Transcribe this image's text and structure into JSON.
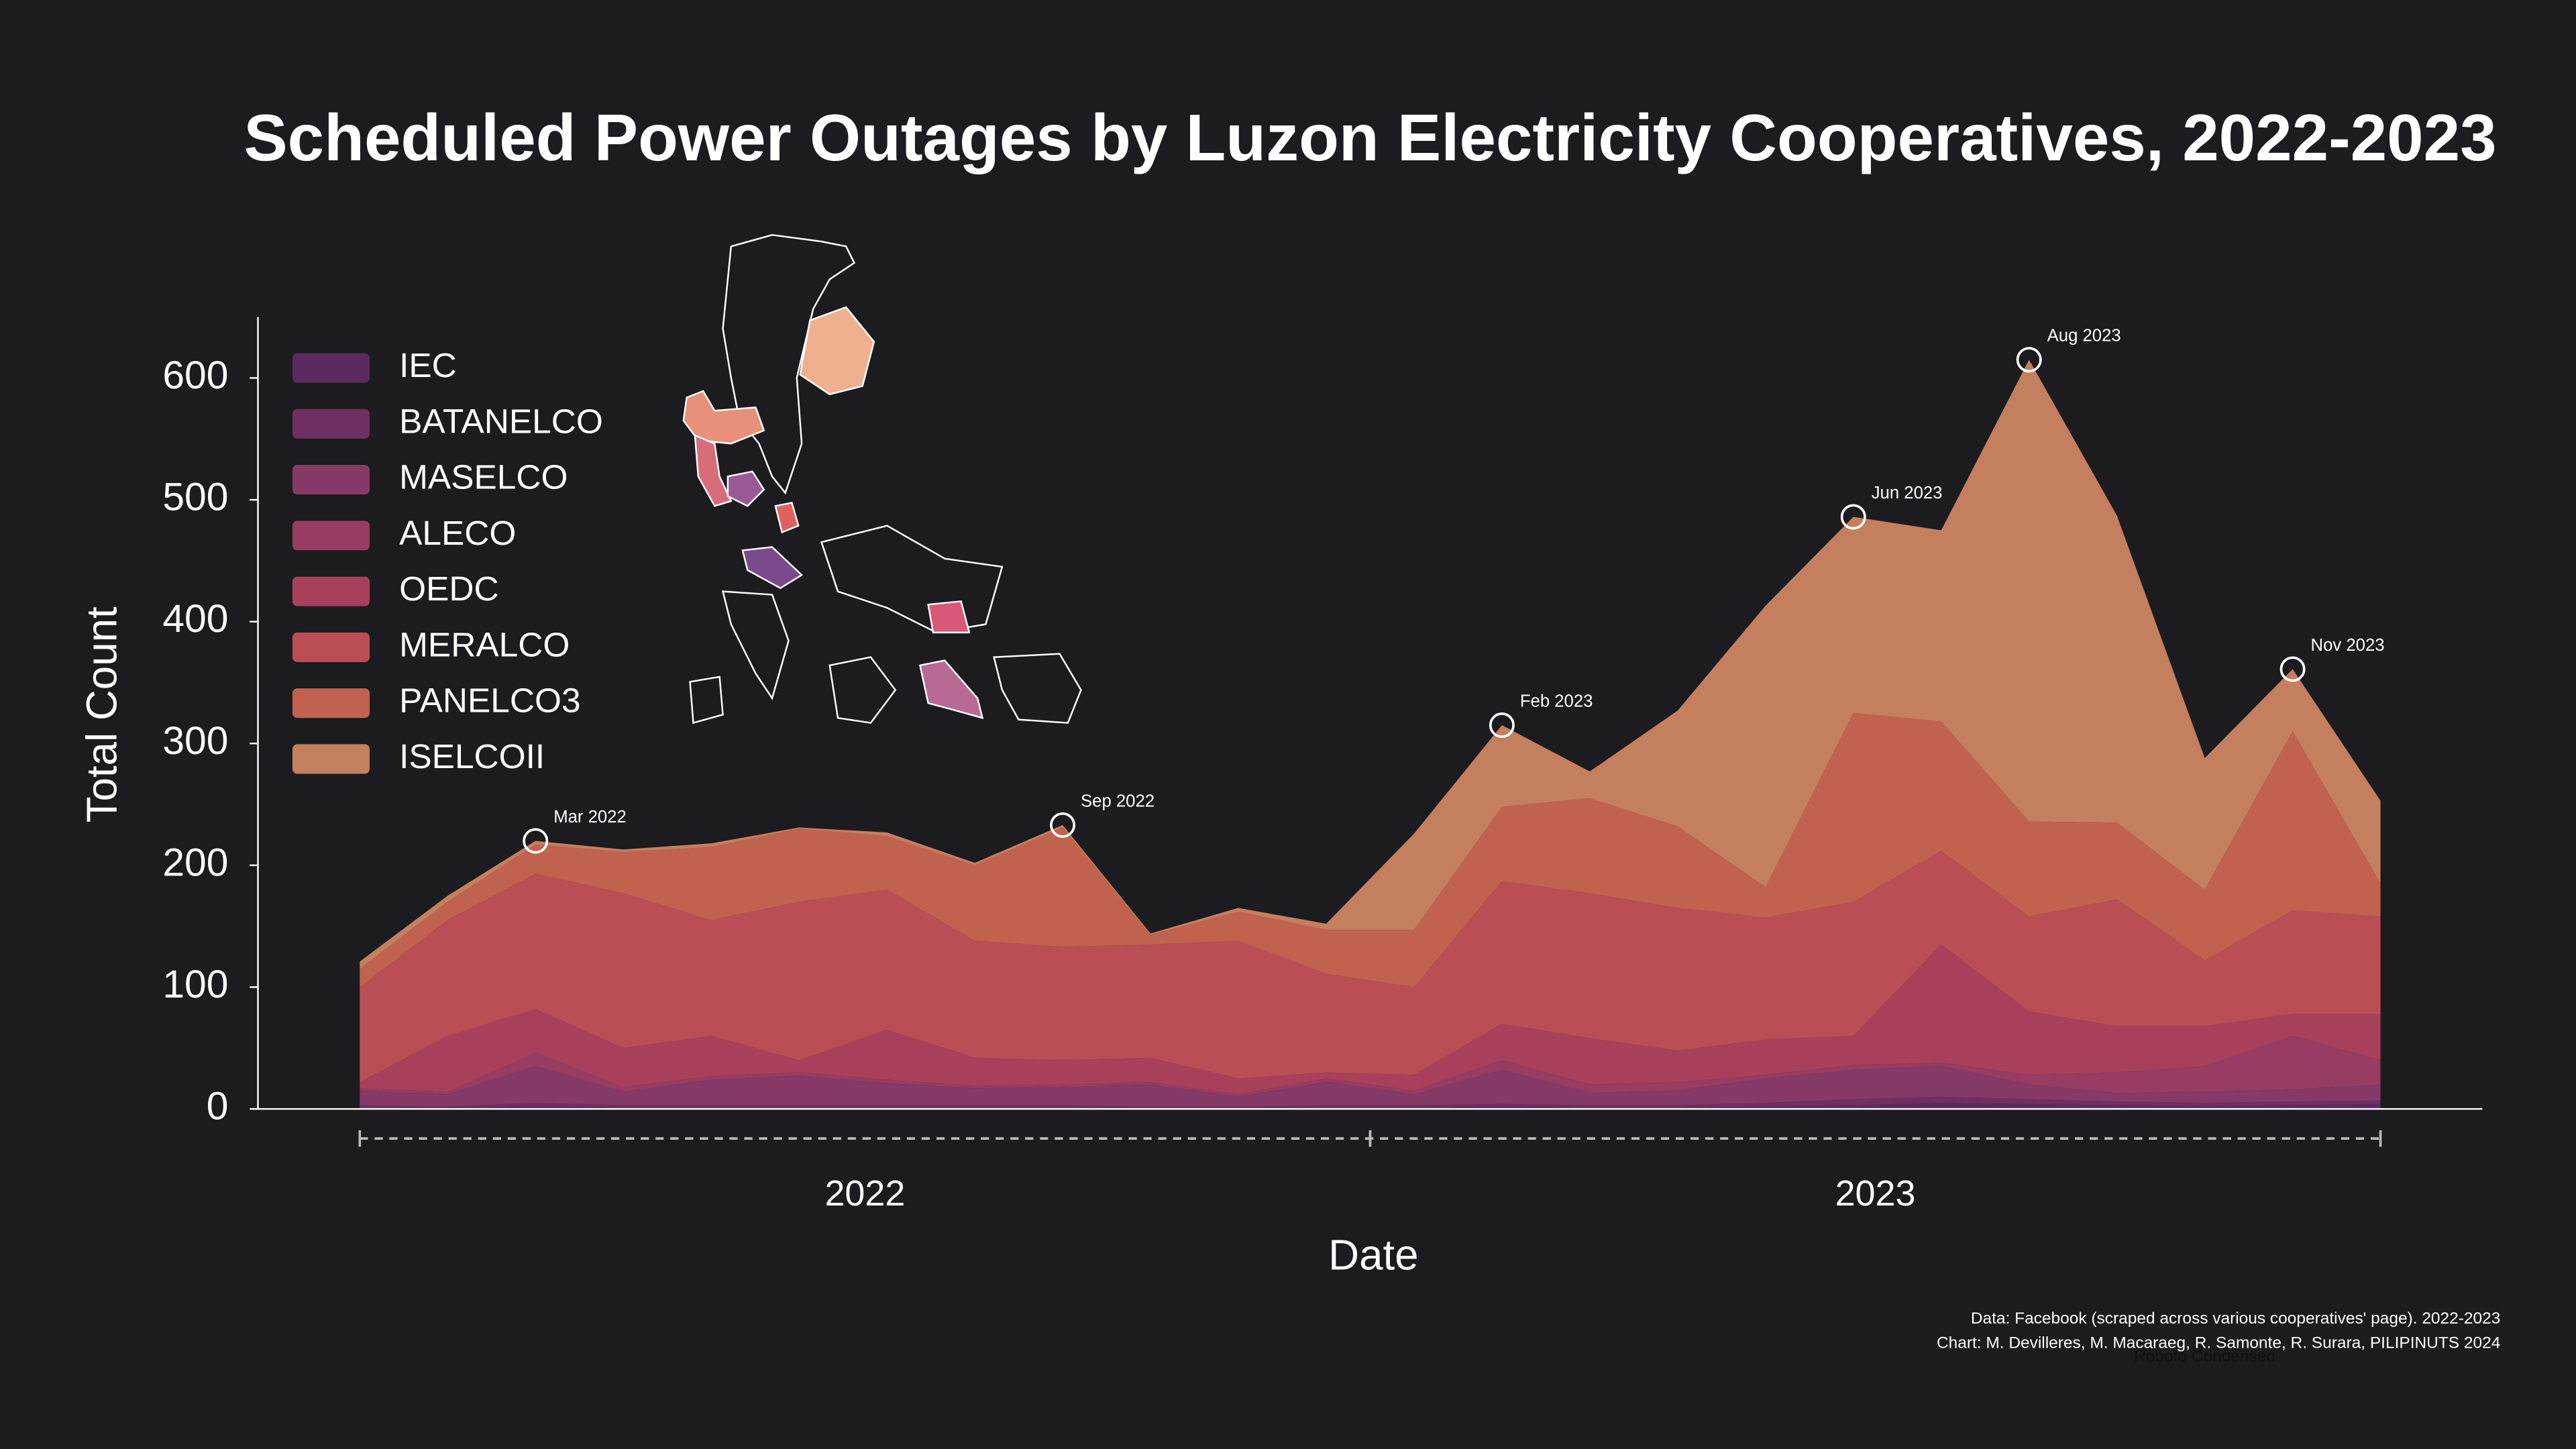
{
  "chart_data": {
    "type": "stacked-area",
    "title": "Scheduled Power Outages by Luzon Electricity Cooperatives, 2022-2023",
    "x_label": "Date",
    "y_label": "Total Count",
    "x": [
      "2022-01",
      "2022-02",
      "2022-03",
      "2022-04",
      "2022-05",
      "2022-06",
      "2022-07",
      "2022-08",
      "2022-09",
      "2022-10",
      "2022-11",
      "2022-12",
      "2023-01",
      "2023-02",
      "2023-03",
      "2023-04",
      "2023-05",
      "2023-06",
      "2023-07",
      "2023-08",
      "2023-09",
      "2023-10",
      "2023-11",
      "2023-12"
    ],
    "xticks": [
      2022,
      2023
    ],
    "ylim": [
      0,
      650
    ],
    "yticks": [
      0,
      100,
      200,
      300,
      400,
      500,
      600
    ],
    "legend": "upper left",
    "series": [
      {
        "name": "IEC",
        "color": "#5b2a5f",
        "values": [
          1,
          1,
          2,
          1,
          1,
          1,
          1,
          1,
          1,
          1,
          1,
          1,
          1,
          2,
          1,
          1,
          2,
          3,
          5,
          4,
          3,
          2,
          3,
          4
        ]
      },
      {
        "name": "BATANELCO",
        "color": "#702f61",
        "values": [
          2,
          1,
          3,
          2,
          2,
          2,
          2,
          2,
          2,
          1,
          1,
          2,
          2,
          2,
          2,
          2,
          3,
          5,
          5,
          4,
          3,
          3,
          3,
          3
        ]
      },
      {
        "name": "MASELCO",
        "color": "#853a67",
        "values": [
          12,
          10,
          30,
          11,
          21,
          24,
          18,
          14,
          15,
          18,
          8,
          19,
          9,
          28,
          10,
          12,
          20,
          24,
          25,
          12,
          7,
          9,
          10,
          13
        ]
      },
      {
        "name": "ALECO",
        "color": "#973c62",
        "values": [
          2,
          2,
          11,
          4,
          3,
          3,
          3,
          2,
          2,
          2,
          2,
          3,
          3,
          8,
          7,
          7,
          3,
          4,
          3,
          8,
          17,
          21,
          44,
          20
        ]
      },
      {
        "name": "OEDC",
        "color": "#a8405c",
        "values": [
          5,
          46,
          36,
          32,
          33,
          10,
          41,
          23,
          20,
          20,
          13,
          5,
          13,
          30,
          38,
          26,
          29,
          24,
          97,
          52,
          38,
          33,
          18,
          38
        ]
      },
      {
        "name": "MERALCO",
        "color": "#b94f54",
        "values": [
          78,
          95,
          111,
          127,
          95,
          130,
          115,
          96,
          93,
          93,
          113,
          81,
          72,
          117,
          119,
          117,
          100,
          110,
          77,
          78,
          104,
          54,
          85,
          80
        ]
      },
      {
        "name": "PANELCO3",
        "color": "#c1624f",
        "values": [
          15,
          15,
          24,
          34,
          60,
          60,
          44,
          62,
          98,
          8,
          24,
          36,
          47,
          61,
          78,
          67,
          25,
          155,
          106,
          78,
          63,
          58,
          147,
          27
        ]
      },
      {
        "name": "ISELCOII",
        "color": "#c47f5f",
        "values": [
          6,
          5,
          3,
          2,
          3,
          1,
          3,
          2,
          2,
          1,
          3,
          5,
          79,
          67,
          22,
          95,
          231,
          161,
          157,
          379,
          252,
          108,
          51,
          68
        ]
      }
    ],
    "annotations": [
      {
        "x": "2022-03",
        "label": "Mar 2022"
      },
      {
        "x": "2022-09",
        "label": "Sep 2022"
      },
      {
        "x": "2023-02",
        "label": "Feb 2023"
      },
      {
        "x": "2023-06",
        "label": "Jun 2023"
      },
      {
        "x": "2023-08",
        "label": "Aug 2023"
      },
      {
        "x": "2023-11",
        "label": "Nov 2023"
      }
    ],
    "credits": [
      "Data: Facebook (scraped across various cooperatives' page). 2022-2023",
      "Chart: M. Devilleres, M. Macaraeg, R. Samonte, R. Surara, PILIPINUTS 2024"
    ],
    "font_note": "Roboto Condensed"
  }
}
